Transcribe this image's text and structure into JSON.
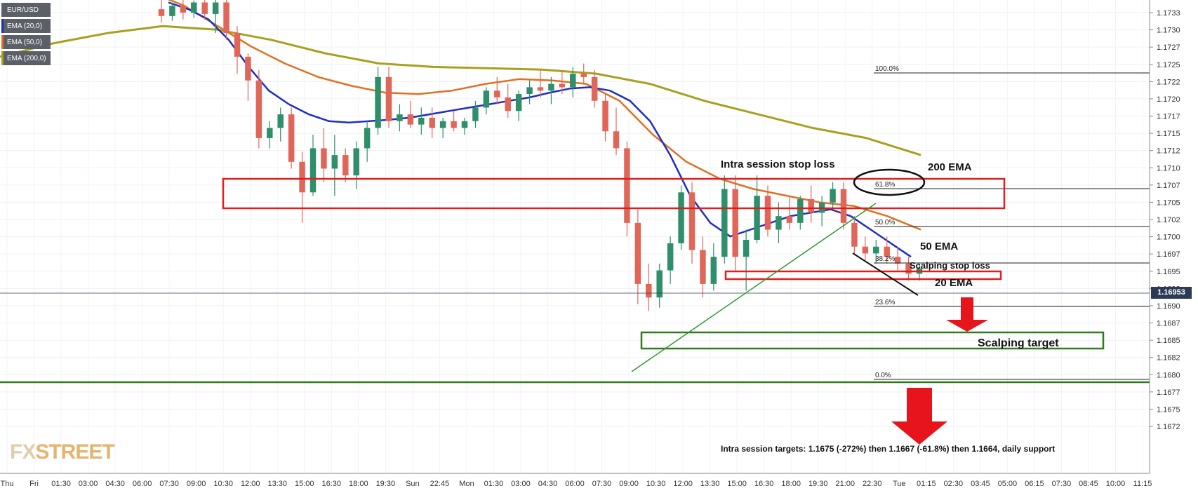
{
  "legend": [
    {
      "label": "EUR/USD",
      "color": "#5b6068"
    },
    {
      "label": "EMA (20,0)",
      "color": "#1f2ec2"
    },
    {
      "label": "EMA (50,0)",
      "color": "#e07020"
    },
    {
      "label": "EMA (200,0)",
      "color": "#a8a020"
    }
  ],
  "logo": {
    "part1": "FX",
    "part2": "STREET"
  },
  "current_price": "1.16953",
  "chart_data": {
    "type": "candlestick",
    "symbol": "EUR/USD",
    "ylim": [
      1.167,
      1.1735
    ],
    "y_ticks": [
      "1.1733",
      "1.1730",
      "1.1727",
      "1.1725",
      "1.1722",
      "1.1720",
      "1.1717",
      "1.1715",
      "1.1712",
      "1.1710",
      "1.1707",
      "1.1705",
      "1.1702",
      "1.1700",
      "1.1697",
      "1.1695",
      "1.1692",
      "1.1690",
      "1.1687",
      "1.1685",
      "1.1682",
      "1.1680",
      "1.1677",
      "1.1675",
      "1.1672"
    ],
    "x_ticks": [
      "Thu",
      "Fri",
      "01:30",
      "03:00",
      "04:30",
      "06:00",
      "07:30",
      "09:00",
      "10:30",
      "12:00",
      "13:30",
      "15:00",
      "16:30",
      "18:00",
      "19:30",
      "Sun",
      "22:45",
      "Mon",
      "01:30",
      "03:00",
      "04:30",
      "06:00",
      "07:30",
      "09:00",
      "10:30",
      "12:00",
      "13:30",
      "15:00",
      "16:30",
      "18:00",
      "19:30",
      "21:00",
      "22:30",
      "Tue",
      "01:15",
      "02:30",
      "03:45",
      "05:00",
      "06:15",
      "07:30",
      "08:45",
      "10:00",
      "11:15"
    ],
    "candles": [
      {
        "o": 1.17335,
        "h": 1.17352,
        "l": 1.17315,
        "c": 1.17325
      },
      {
        "o": 1.17325,
        "h": 1.17345,
        "l": 1.17318,
        "c": 1.1734
      },
      {
        "o": 1.1734,
        "h": 1.1735,
        "l": 1.1732,
        "c": 1.1733
      },
      {
        "o": 1.1733,
        "h": 1.17348,
        "l": 1.17322,
        "c": 1.17345
      },
      {
        "o": 1.17345,
        "h": 1.1735,
        "l": 1.1732,
        "c": 1.17328
      },
      {
        "o": 1.17328,
        "h": 1.1735,
        "l": 1.173,
        "c": 1.17345
      },
      {
        "o": 1.17345,
        "h": 1.1735,
        "l": 1.1729,
        "c": 1.173
      },
      {
        "o": 1.173,
        "h": 1.1731,
        "l": 1.1724,
        "c": 1.17265
      },
      {
        "o": 1.17265,
        "h": 1.1727,
        "l": 1.172,
        "c": 1.1723
      },
      {
        "o": 1.1723,
        "h": 1.17245,
        "l": 1.1713,
        "c": 1.17145
      },
      {
        "o": 1.17145,
        "h": 1.1717,
        "l": 1.1713,
        "c": 1.1716
      },
      {
        "o": 1.1716,
        "h": 1.1719,
        "l": 1.1714,
        "c": 1.1718
      },
      {
        "o": 1.1718,
        "h": 1.1719,
        "l": 1.171,
        "c": 1.1711
      },
      {
        "o": 1.1711,
        "h": 1.17125,
        "l": 1.1702,
        "c": 1.17065
      },
      {
        "o": 1.17065,
        "h": 1.1715,
        "l": 1.1706,
        "c": 1.1713
      },
      {
        "o": 1.1713,
        "h": 1.1716,
        "l": 1.1708,
        "c": 1.171
      },
      {
        "o": 1.171,
        "h": 1.1715,
        "l": 1.1706,
        "c": 1.1712
      },
      {
        "o": 1.1712,
        "h": 1.1713,
        "l": 1.1708,
        "c": 1.1709
      },
      {
        "o": 1.1709,
        "h": 1.1714,
        "l": 1.1707,
        "c": 1.1713
      },
      {
        "o": 1.1713,
        "h": 1.1717,
        "l": 1.1711,
        "c": 1.1716
      },
      {
        "o": 1.1716,
        "h": 1.1725,
        "l": 1.1715,
        "c": 1.17235
      },
      {
        "o": 1.17235,
        "h": 1.1725,
        "l": 1.1716,
        "c": 1.1717
      },
      {
        "o": 1.1717,
        "h": 1.17195,
        "l": 1.17155,
        "c": 1.1718
      },
      {
        "o": 1.1718,
        "h": 1.172,
        "l": 1.1716,
        "c": 1.17165
      },
      {
        "o": 1.17165,
        "h": 1.1719,
        "l": 1.1715,
        "c": 1.17175
      },
      {
        "o": 1.17175,
        "h": 1.1719,
        "l": 1.17145,
        "c": 1.1716
      },
      {
        "o": 1.1716,
        "h": 1.17175,
        "l": 1.17145,
        "c": 1.1717
      },
      {
        "o": 1.1717,
        "h": 1.17185,
        "l": 1.17155,
        "c": 1.1716
      },
      {
        "o": 1.1716,
        "h": 1.17175,
        "l": 1.1715,
        "c": 1.1717
      },
      {
        "o": 1.1717,
        "h": 1.172,
        "l": 1.1716,
        "c": 1.1719
      },
      {
        "o": 1.1719,
        "h": 1.1722,
        "l": 1.1718,
        "c": 1.17215
      },
      {
        "o": 1.17215,
        "h": 1.17235,
        "l": 1.17195,
        "c": 1.17205
      },
      {
        "o": 1.17205,
        "h": 1.17225,
        "l": 1.17175,
        "c": 1.17185
      },
      {
        "o": 1.17185,
        "h": 1.17215,
        "l": 1.1717,
        "c": 1.1721
      },
      {
        "o": 1.1721,
        "h": 1.1723,
        "l": 1.17195,
        "c": 1.1722
      },
      {
        "o": 1.1722,
        "h": 1.17245,
        "l": 1.17205,
        "c": 1.17215
      },
      {
        "o": 1.17215,
        "h": 1.17235,
        "l": 1.17195,
        "c": 1.17225
      },
      {
        "o": 1.17225,
        "h": 1.17245,
        "l": 1.1721,
        "c": 1.1722
      },
      {
        "o": 1.1722,
        "h": 1.1725,
        "l": 1.17205,
        "c": 1.1724
      },
      {
        "o": 1.1724,
        "h": 1.17255,
        "l": 1.17225,
        "c": 1.17235
      },
      {
        "o": 1.17235,
        "h": 1.17245,
        "l": 1.1719,
        "c": 1.172
      },
      {
        "o": 1.172,
        "h": 1.1721,
        "l": 1.1714,
        "c": 1.17155
      },
      {
        "o": 1.17155,
        "h": 1.1719,
        "l": 1.1712,
        "c": 1.1713
      },
      {
        "o": 1.1713,
        "h": 1.1714,
        "l": 1.17,
        "c": 1.1702
      },
      {
        "o": 1.1702,
        "h": 1.1704,
        "l": 1.169,
        "c": 1.1693
      },
      {
        "o": 1.1693,
        "h": 1.1696,
        "l": 1.1689,
        "c": 1.1691
      },
      {
        "o": 1.1691,
        "h": 1.1696,
        "l": 1.16895,
        "c": 1.1695
      },
      {
        "o": 1.1695,
        "h": 1.17,
        "l": 1.1693,
        "c": 1.1699
      },
      {
        "o": 1.1699,
        "h": 1.17075,
        "l": 1.1698,
        "c": 1.17065
      },
      {
        "o": 1.17065,
        "h": 1.1708,
        "l": 1.1696,
        "c": 1.1698
      },
      {
        "o": 1.1698,
        "h": 1.17,
        "l": 1.1691,
        "c": 1.1693
      },
      {
        "o": 1.1693,
        "h": 1.1699,
        "l": 1.1692,
        "c": 1.1697
      },
      {
        "o": 1.1697,
        "h": 1.1709,
        "l": 1.1696,
        "c": 1.1707
      },
      {
        "o": 1.1707,
        "h": 1.1709,
        "l": 1.1695,
        "c": 1.1697
      },
      {
        "o": 1.1697,
        "h": 1.1701,
        "l": 1.1692,
        "c": 1.16995
      },
      {
        "o": 1.16995,
        "h": 1.1709,
        "l": 1.1699,
        "c": 1.1706
      },
      {
        "o": 1.1706,
        "h": 1.17075,
        "l": 1.17,
        "c": 1.1701
      },
      {
        "o": 1.1701,
        "h": 1.1705,
        "l": 1.1699,
        "c": 1.1703
      },
      {
        "o": 1.1703,
        "h": 1.1706,
        "l": 1.1701,
        "c": 1.1702
      },
      {
        "o": 1.1702,
        "h": 1.1706,
        "l": 1.1701,
        "c": 1.17055
      },
      {
        "o": 1.17055,
        "h": 1.17075,
        "l": 1.1702,
        "c": 1.17035
      },
      {
        "o": 1.17035,
        "h": 1.1706,
        "l": 1.17015,
        "c": 1.1705
      },
      {
        "o": 1.1705,
        "h": 1.1708,
        "l": 1.1704,
        "c": 1.1707
      },
      {
        "o": 1.1707,
        "h": 1.1708,
        "l": 1.1701,
        "c": 1.1702
      },
      {
        "o": 1.1702,
        "h": 1.1703,
        "l": 1.16975,
        "c": 1.16985
      },
      {
        "o": 1.16985,
        "h": 1.17,
        "l": 1.16965,
        "c": 1.16975
      },
      {
        "o": 1.16975,
        "h": 1.16995,
        "l": 1.1696,
        "c": 1.16985
      },
      {
        "o": 1.16985,
        "h": 1.17,
        "l": 1.1696,
        "c": 1.1697
      },
      {
        "o": 1.1697,
        "h": 1.16985,
        "l": 1.1695,
        "c": 1.1696
      },
      {
        "o": 1.1696,
        "h": 1.1697,
        "l": 1.16935,
        "c": 1.16945
      },
      {
        "o": 1.16945,
        "h": 1.1696,
        "l": 1.16935,
        "c": 1.16953
      }
    ],
    "ema20": [
      1.17345,
      1.17335,
      1.1732,
      1.1729,
      1.1725,
      1.17215,
      1.17195,
      1.1718,
      1.1717,
      1.17168,
      1.1717,
      1.17172,
      1.17175,
      1.1718,
      1.17185,
      1.1719,
      1.17195,
      1.172,
      1.17205,
      1.17212,
      1.17218,
      1.1722,
      1.17215,
      1.172,
      1.1717,
      1.1712,
      1.1706,
      1.1702,
      1.17,
      1.1701,
      1.1702,
      1.1703,
      1.17035,
      1.1704,
      1.1703,
      1.1701,
      1.1699,
      1.1697
    ],
    "ema50": [
      1.1736,
      1.1734,
      1.1731,
      1.1728,
      1.17255,
      1.17235,
      1.17222,
      1.17212,
      1.1721,
      1.17215,
      1.17225,
      1.17232,
      1.1723,
      1.17225,
      1.172,
      1.1715,
      1.1711,
      1.17085,
      1.1707,
      1.1706,
      1.1705,
      1.17045,
      1.1703,
      1.1701
    ],
    "ema200": [
      1.17265,
      1.17285,
      1.173,
      1.1731,
      1.17305,
      1.1729,
      1.1727,
      1.17255,
      1.1725,
      1.17248,
      1.17246,
      1.1724,
      1.17225,
      1.172,
      1.1718,
      1.1716,
      1.17145,
      1.1712
    ],
    "fib_levels": [
      {
        "label": "100.0%"
      },
      {
        "label": "61.8%"
      },
      {
        "label": "50.0%"
      },
      {
        "label": "38.2%"
      },
      {
        "label": "23.6%"
      },
      {
        "label": "0.0%"
      }
    ],
    "annotations": {
      "intra_stop": "Intra session stop loss",
      "ema200": "200 EMA",
      "ema50": "50 EMA",
      "ema20": "20 EMA",
      "scalp_stop": "Scalping stop loss",
      "scalp_target": "Scalping target",
      "intra_targets": "Intra session targets: 1.1675 (-272%) then 1.1667 (-61.8%) then 1.1664, daily support"
    }
  }
}
